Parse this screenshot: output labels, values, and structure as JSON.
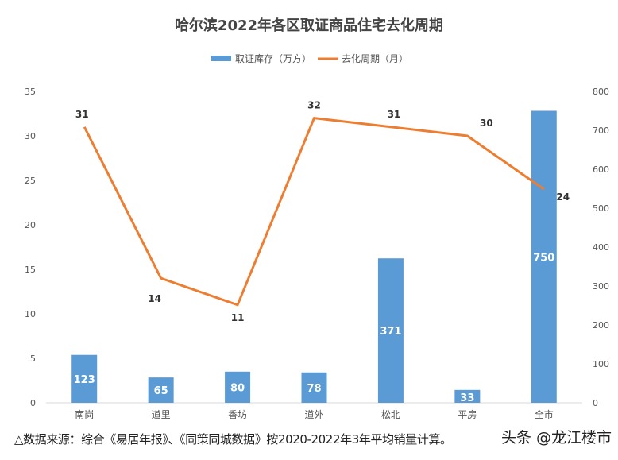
{
  "chart_data": {
    "type": "bar+line",
    "title": "哈尔滨2022年各区取证商品住宅去化周期",
    "categories": [
      "南岗",
      "道里",
      "香坊",
      "道外",
      "松北",
      "平房",
      "全市"
    ],
    "series": [
      {
        "name": "取证库存（万方）",
        "type": "bar",
        "axis": "right",
        "color": "#5b9bd5",
        "values": [
          123,
          65,
          80,
          78,
          371,
          33,
          750
        ]
      },
      {
        "name": "去化周期（月）",
        "type": "line",
        "axis": "left",
        "color": "#ed7d31",
        "values": [
          31,
          14,
          11,
          32,
          31,
          30,
          24
        ]
      }
    ],
    "left_axis": {
      "ylim": [
        0,
        35
      ],
      "ticks": [
        0,
        5,
        10,
        15,
        20,
        25,
        30,
        35
      ]
    },
    "right_axis": {
      "ylim": [
        0,
        800
      ],
      "ticks": [
        0,
        100,
        200,
        300,
        400,
        500,
        600,
        700,
        800
      ]
    },
    "legend": "top",
    "grid": false
  },
  "footer": "△数据来源：综合《易居年报》、《同策同城数据》按2020-2022年3年平均销量计算。",
  "brand": "头条 @龙江楼市",
  "watermark": "龙江楼市"
}
